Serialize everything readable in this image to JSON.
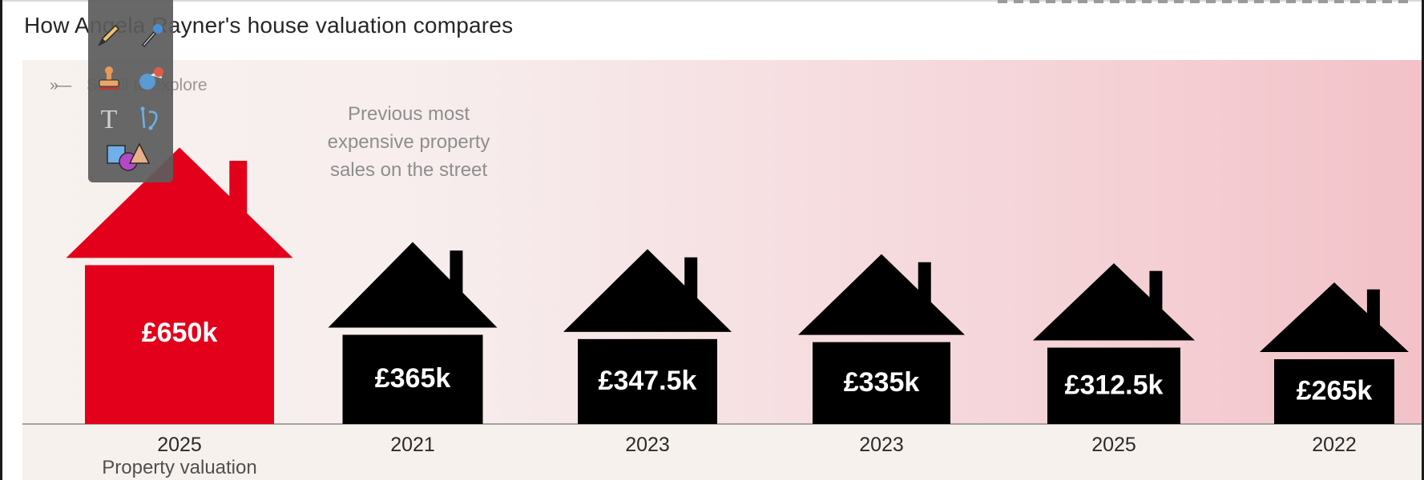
{
  "title": "How Angela Rayner's house valuation compares",
  "scroll_hint": "Scroll to explore",
  "annotation": "Previous most expensive property sales on the street",
  "colors": {
    "highlight": "#e3001b",
    "house": "#000000",
    "baseline": "#8a8a8a"
  },
  "palette": {
    "tools": [
      "pencil-icon",
      "eyedropper-icon",
      "stamp-icon",
      "sticker-icon",
      "text-icon",
      "path-icon",
      "shapes-icon"
    ]
  },
  "chart_data": {
    "type": "bar",
    "title": "How Angela Rayner's house valuation compares",
    "categories": [
      "2025",
      "2021",
      "2023",
      "2023",
      "2025",
      "2022"
    ],
    "values": [
      650,
      365,
      347.5,
      335,
      312.5,
      265
    ],
    "value_labels": [
      "£650k",
      "£365k",
      "£347.5k",
      "£335k",
      "£312.5k",
      "£265k"
    ],
    "highlight_index": 0,
    "highlight_sublabel": "Property valuation",
    "unit": "£ thousands"
  }
}
